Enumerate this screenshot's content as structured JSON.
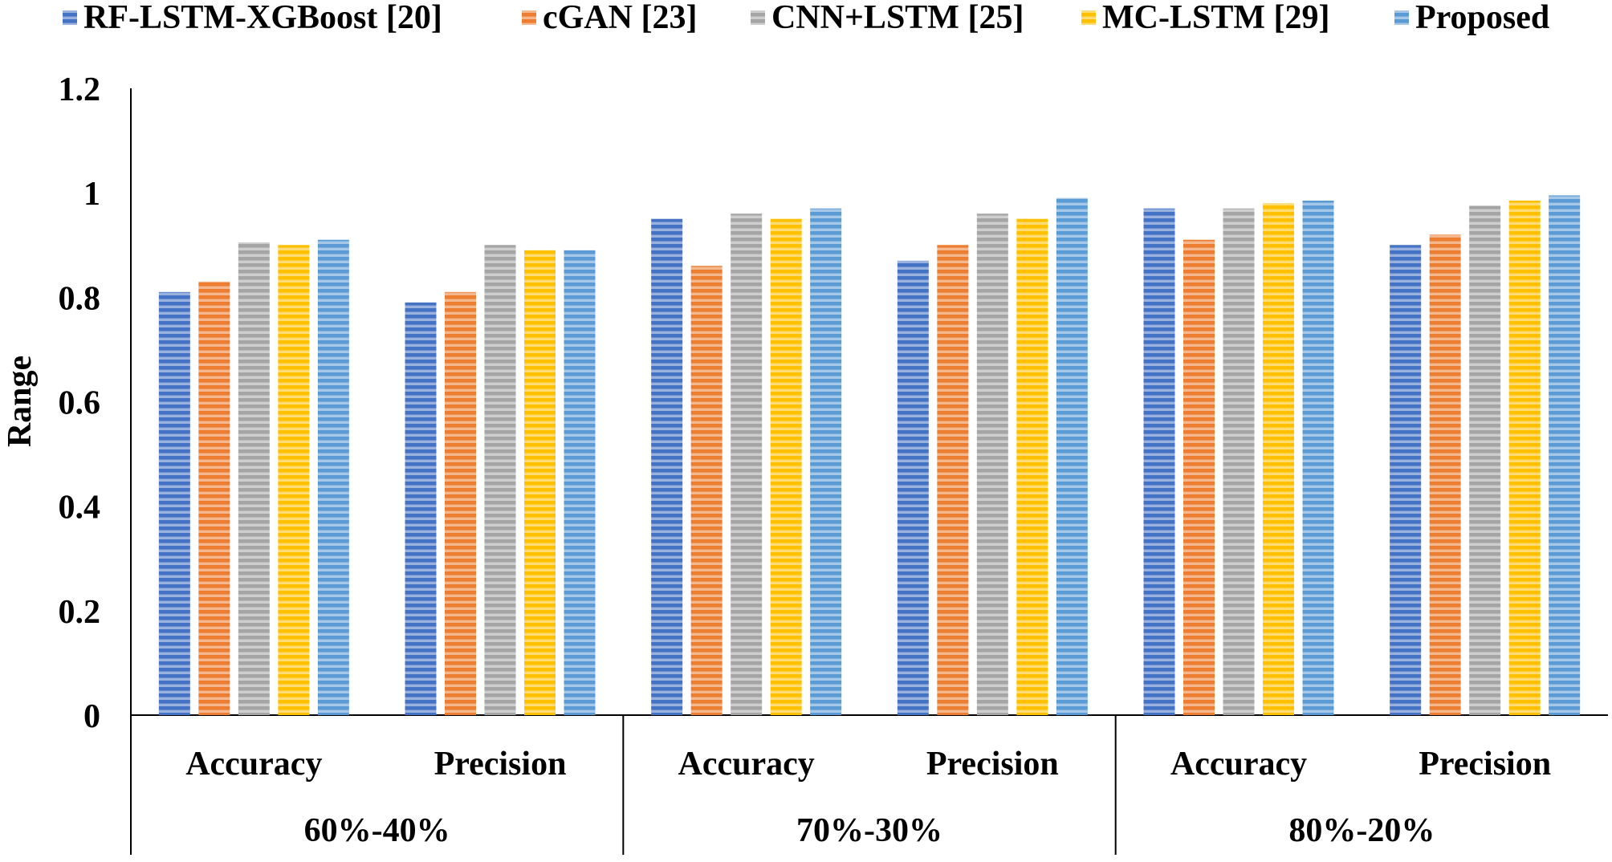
{
  "chart_data": {
    "type": "bar",
    "title": "",
    "ylabel": "Range",
    "xlabel": "",
    "ylim": [
      0,
      1.2
    ],
    "yticks": [
      "0",
      "0.2",
      "0.4",
      "0.6",
      "0.8",
      "1",
      "1.2"
    ],
    "ytick_values": [
      0,
      0.2,
      0.4,
      0.6,
      0.8,
      1.0,
      1.2
    ],
    "legend_position": "top",
    "grid": false,
    "groups": [
      "60%-40%",
      "70%-30%",
      "80%-20%"
    ],
    "categories": [
      "Accuracy",
      "Precision",
      "Accuracy",
      "Precision",
      "Accuracy",
      "Precision"
    ],
    "series": [
      {
        "name": "RF-LSTM-XGBoost [20]",
        "color": "#4472C4",
        "values": [
          0.81,
          0.79,
          0.95,
          0.87,
          0.97,
          0.9
        ]
      },
      {
        "name": "cGAN [23]",
        "color": "#ED7D31",
        "values": [
          0.83,
          0.81,
          0.86,
          0.9,
          0.91,
          0.92
        ]
      },
      {
        "name": "CNN+LSTM [25]",
        "color": "#A5A5A5",
        "values": [
          0.905,
          0.9,
          0.96,
          0.96,
          0.97,
          0.975
        ]
      },
      {
        "name": "MC-LSTM [29]",
        "color": "#FFC000",
        "values": [
          0.9,
          0.89,
          0.95,
          0.95,
          0.98,
          0.985
        ]
      },
      {
        "name": "Proposed",
        "color": "#5B9BD5",
        "values": [
          0.91,
          0.89,
          0.97,
          0.99,
          0.985,
          0.995
        ]
      }
    ]
  }
}
